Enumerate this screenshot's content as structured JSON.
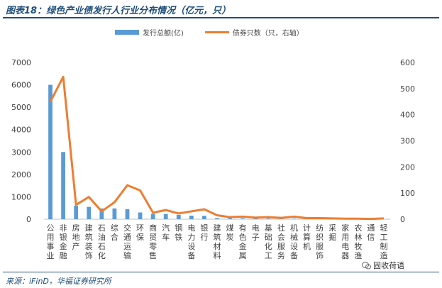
{
  "title": "图表18：绿色产业债发行人行业分布情况（亿元，只）",
  "source": "来源：iFinD，华福证券研究所",
  "watermark": "固收荷语",
  "colors": {
    "bar": "#5b9bd5",
    "line": "#ed7d31",
    "header": "#1f4e79"
  },
  "chart_data": {
    "type": "bar",
    "title": "",
    "legend_position": "top",
    "grid": false,
    "categories": [
      "公用事业",
      "非银金融",
      "房地产",
      "建筑装饰",
      "石油石化",
      "综合",
      "交通运输",
      "环保",
      "商贸零售",
      "汽车",
      "钢铁",
      "电力设备",
      "银行",
      "建筑材料",
      "煤炭",
      "有色金属",
      "电子",
      "基础化工",
      "社会服务",
      "机械设备",
      "计算机",
      "纺织服饰",
      "采掘",
      "家用电器",
      "农林牧渔",
      "通信",
      "轻工制造"
    ],
    "ylim": [
      0,
      7000
    ],
    "yticks": [
      0,
      1000,
      2000,
      3000,
      4000,
      5000,
      6000,
      7000
    ],
    "y2lim": [
      0,
      600
    ],
    "y2ticks": [
      0,
      100,
      200,
      300,
      400,
      500,
      600
    ],
    "series": [
      {
        "name": "发行总额(亿)",
        "type": "bar",
        "axis": "left",
        "values": [
          6000,
          3000,
          600,
          550,
          480,
          480,
          450,
          300,
          240,
          230,
          190,
          160,
          150,
          50,
          45,
          40,
          35,
          30,
          25,
          25,
          20,
          15,
          10,
          10,
          8,
          5,
          5
        ]
      },
      {
        "name": "债券只数（只，右轴）",
        "type": "line",
        "axis": "right",
        "values": [
          450,
          545,
          55,
          85,
          30,
          65,
          130,
          110,
          25,
          35,
          22,
          30,
          38,
          15,
          8,
          10,
          6,
          8,
          5,
          10,
          4,
          4,
          3,
          2,
          2,
          1,
          3
        ]
      }
    ]
  }
}
